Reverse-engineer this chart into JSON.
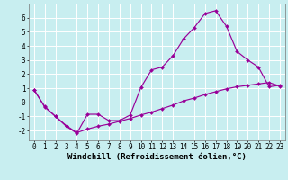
{
  "background_color": "#c8eef0",
  "grid_color": "#ffffff",
  "line_color": "#990099",
  "marker_color": "#990099",
  "xlim": [
    -0.5,
    23.5
  ],
  "ylim": [
    -2.7,
    7.0
  ],
  "yticks": [
    -2,
    -1,
    0,
    1,
    2,
    3,
    4,
    5,
    6
  ],
  "xticks": [
    0,
    1,
    2,
    3,
    4,
    5,
    6,
    7,
    8,
    9,
    10,
    11,
    12,
    13,
    14,
    15,
    16,
    17,
    18,
    19,
    20,
    21,
    22,
    23
  ],
  "curve1_x": [
    0,
    1,
    2,
    3,
    4,
    5,
    6,
    7,
    8,
    9,
    10,
    11,
    12,
    13,
    14,
    15,
    16,
    17,
    18,
    19,
    20,
    21,
    22,
    23
  ],
  "curve1_y": [
    0.9,
    -0.35,
    -1.0,
    -1.7,
    -2.2,
    -0.85,
    -0.85,
    -1.3,
    -1.3,
    -0.9,
    1.05,
    2.3,
    2.5,
    3.3,
    4.5,
    5.3,
    6.3,
    6.5,
    5.4,
    3.6,
    3.0,
    2.5,
    1.1,
    1.2
  ],
  "curve2_x": [
    0,
    1,
    2,
    3,
    4,
    5,
    6,
    7,
    8,
    9,
    10,
    11,
    12,
    13,
    14,
    15,
    16,
    17,
    18,
    19,
    20,
    21,
    22,
    23
  ],
  "curve2_y": [
    0.85,
    -0.3,
    -1.0,
    -1.65,
    -2.15,
    -1.9,
    -1.7,
    -1.55,
    -1.35,
    -1.15,
    -0.9,
    -0.7,
    -0.45,
    -0.2,
    0.1,
    0.3,
    0.55,
    0.75,
    0.95,
    1.1,
    1.2,
    1.3,
    1.4,
    1.15
  ],
  "xlabel": "Windchill (Refroidissement éolien,°C)",
  "xlabel_fontsize": 6.5,
  "tick_fontsize": 5.5,
  "linewidth": 0.85,
  "markersize": 2.0
}
